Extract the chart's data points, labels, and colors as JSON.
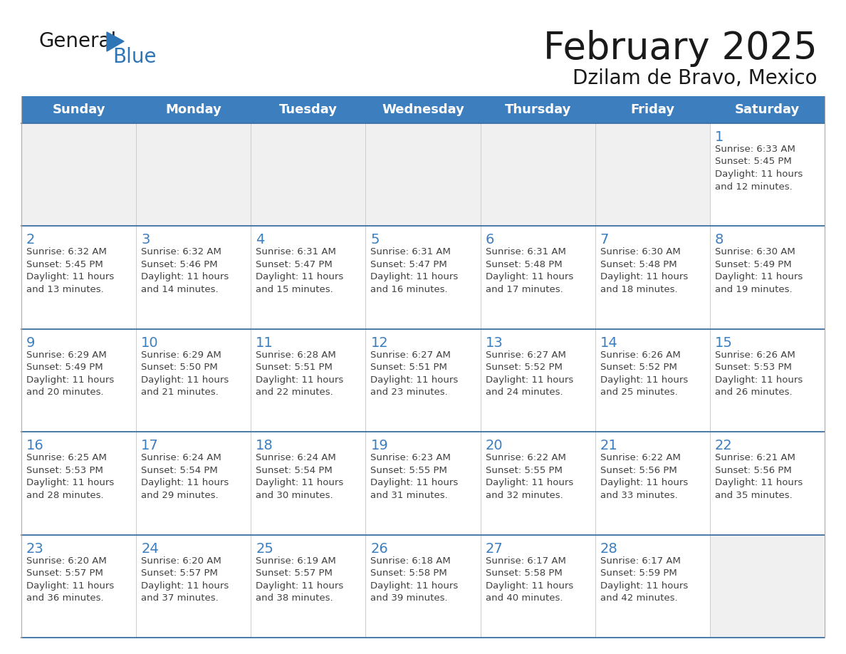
{
  "title": "February 2025",
  "subtitle": "Dzilam de Bravo, Mexico",
  "header_bg": "#3d7ebf",
  "header_text_color": "#FFFFFF",
  "border_color": "#3d6fa0",
  "row_border_color": "#3d6fa0",
  "title_color": "#1a1a1a",
  "subtitle_color": "#1a1a1a",
  "day_number_color": "#3d7ebf",
  "cell_text_color": "#404040",
  "empty_cell_bg": "#f0f0f0",
  "filled_cell_bg": "#FFFFFF",
  "days_of_week": [
    "Sunday",
    "Monday",
    "Tuesday",
    "Wednesday",
    "Thursday",
    "Friday",
    "Saturday"
  ],
  "weeks": [
    [
      {
        "day": null,
        "info": null
      },
      {
        "day": null,
        "info": null
      },
      {
        "day": null,
        "info": null
      },
      {
        "day": null,
        "info": null
      },
      {
        "day": null,
        "info": null
      },
      {
        "day": null,
        "info": null
      },
      {
        "day": 1,
        "info": "Sunrise: 6:33 AM\nSunset: 5:45 PM\nDaylight: 11 hours\nand 12 minutes."
      }
    ],
    [
      {
        "day": 2,
        "info": "Sunrise: 6:32 AM\nSunset: 5:45 PM\nDaylight: 11 hours\nand 13 minutes."
      },
      {
        "day": 3,
        "info": "Sunrise: 6:32 AM\nSunset: 5:46 PM\nDaylight: 11 hours\nand 14 minutes."
      },
      {
        "day": 4,
        "info": "Sunrise: 6:31 AM\nSunset: 5:47 PM\nDaylight: 11 hours\nand 15 minutes."
      },
      {
        "day": 5,
        "info": "Sunrise: 6:31 AM\nSunset: 5:47 PM\nDaylight: 11 hours\nand 16 minutes."
      },
      {
        "day": 6,
        "info": "Sunrise: 6:31 AM\nSunset: 5:48 PM\nDaylight: 11 hours\nand 17 minutes."
      },
      {
        "day": 7,
        "info": "Sunrise: 6:30 AM\nSunset: 5:48 PM\nDaylight: 11 hours\nand 18 minutes."
      },
      {
        "day": 8,
        "info": "Sunrise: 6:30 AM\nSunset: 5:49 PM\nDaylight: 11 hours\nand 19 minutes."
      }
    ],
    [
      {
        "day": 9,
        "info": "Sunrise: 6:29 AM\nSunset: 5:49 PM\nDaylight: 11 hours\nand 20 minutes."
      },
      {
        "day": 10,
        "info": "Sunrise: 6:29 AM\nSunset: 5:50 PM\nDaylight: 11 hours\nand 21 minutes."
      },
      {
        "day": 11,
        "info": "Sunrise: 6:28 AM\nSunset: 5:51 PM\nDaylight: 11 hours\nand 22 minutes."
      },
      {
        "day": 12,
        "info": "Sunrise: 6:27 AM\nSunset: 5:51 PM\nDaylight: 11 hours\nand 23 minutes."
      },
      {
        "day": 13,
        "info": "Sunrise: 6:27 AM\nSunset: 5:52 PM\nDaylight: 11 hours\nand 24 minutes."
      },
      {
        "day": 14,
        "info": "Sunrise: 6:26 AM\nSunset: 5:52 PM\nDaylight: 11 hours\nand 25 minutes."
      },
      {
        "day": 15,
        "info": "Sunrise: 6:26 AM\nSunset: 5:53 PM\nDaylight: 11 hours\nand 26 minutes."
      }
    ],
    [
      {
        "day": 16,
        "info": "Sunrise: 6:25 AM\nSunset: 5:53 PM\nDaylight: 11 hours\nand 28 minutes."
      },
      {
        "day": 17,
        "info": "Sunrise: 6:24 AM\nSunset: 5:54 PM\nDaylight: 11 hours\nand 29 minutes."
      },
      {
        "day": 18,
        "info": "Sunrise: 6:24 AM\nSunset: 5:54 PM\nDaylight: 11 hours\nand 30 minutes."
      },
      {
        "day": 19,
        "info": "Sunrise: 6:23 AM\nSunset: 5:55 PM\nDaylight: 11 hours\nand 31 minutes."
      },
      {
        "day": 20,
        "info": "Sunrise: 6:22 AM\nSunset: 5:55 PM\nDaylight: 11 hours\nand 32 minutes."
      },
      {
        "day": 21,
        "info": "Sunrise: 6:22 AM\nSunset: 5:56 PM\nDaylight: 11 hours\nand 33 minutes."
      },
      {
        "day": 22,
        "info": "Sunrise: 6:21 AM\nSunset: 5:56 PM\nDaylight: 11 hours\nand 35 minutes."
      }
    ],
    [
      {
        "day": 23,
        "info": "Sunrise: 6:20 AM\nSunset: 5:57 PM\nDaylight: 11 hours\nand 36 minutes."
      },
      {
        "day": 24,
        "info": "Sunrise: 6:20 AM\nSunset: 5:57 PM\nDaylight: 11 hours\nand 37 minutes."
      },
      {
        "day": 25,
        "info": "Sunrise: 6:19 AM\nSunset: 5:57 PM\nDaylight: 11 hours\nand 38 minutes."
      },
      {
        "day": 26,
        "info": "Sunrise: 6:18 AM\nSunset: 5:58 PM\nDaylight: 11 hours\nand 39 minutes."
      },
      {
        "day": 27,
        "info": "Sunrise: 6:17 AM\nSunset: 5:58 PM\nDaylight: 11 hours\nand 40 minutes."
      },
      {
        "day": 28,
        "info": "Sunrise: 6:17 AM\nSunset: 5:59 PM\nDaylight: 11 hours\nand 42 minutes."
      },
      {
        "day": null,
        "info": null
      }
    ]
  ],
  "logo_general_color": "#1a1a1a",
  "logo_blue_color": "#2E75B6",
  "title_fontsize": 38,
  "subtitle_fontsize": 20,
  "header_fontsize": 13,
  "day_num_fontsize": 14,
  "cell_text_fontsize": 9.5
}
